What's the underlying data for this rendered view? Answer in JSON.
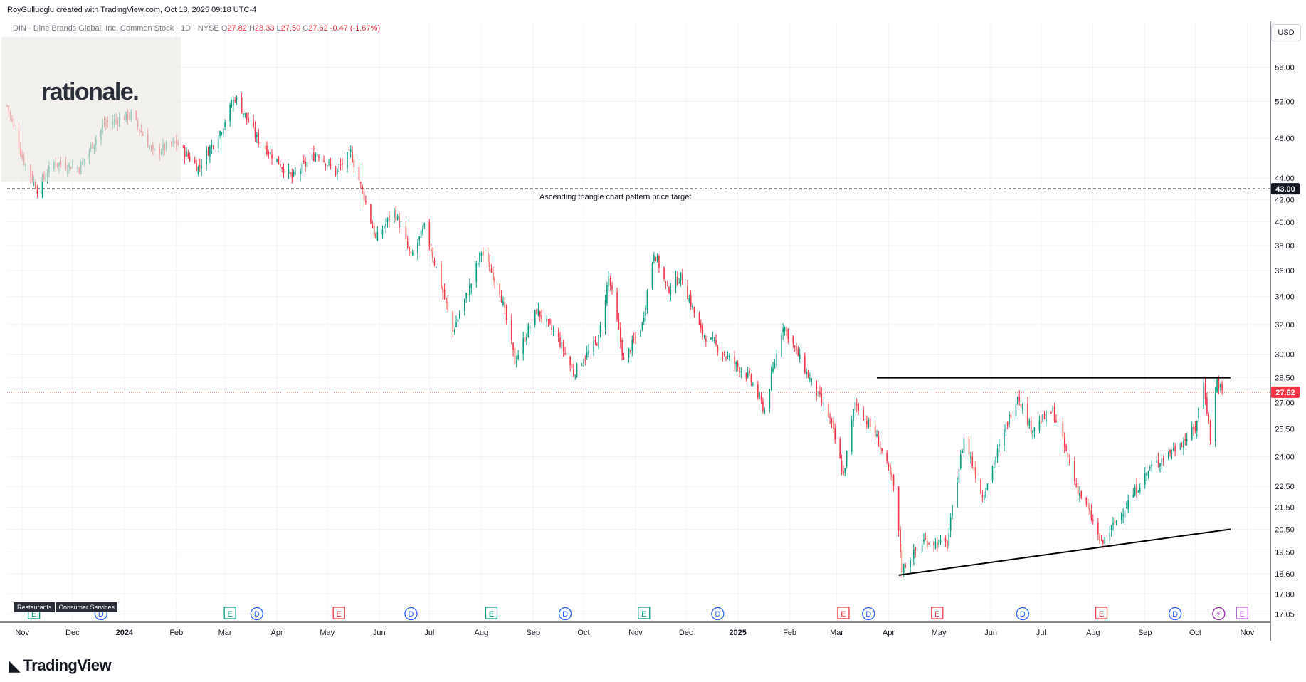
{
  "header": {
    "attribution": "RoyGulluoglu created with TradingView.com, Oct 18, 2025 09:18 UTC-4"
  },
  "ticker": {
    "name": "DIN · Dine Brands Global, Inc. Common Stock · 1D · NYSE",
    "open_label": "O",
    "open": "27.82",
    "high_label": "H",
    "high": "28.33",
    "low_label": "L",
    "low": "27.50",
    "close_label": "C",
    "close": "27.62",
    "change": "-0.47 (-1.67%)"
  },
  "watermark": {
    "text": "rationale."
  },
  "price_scale": {
    "currency": "USD"
  },
  "sector_tags": [
    "Restaurants",
    "Consumer Services"
  ],
  "footer": {
    "brand": "TradingView"
  },
  "colors": {
    "up": "#089981",
    "down": "#f23645",
    "grid": "#f0f3fa",
    "axis_text": "#131722",
    "trendline": "#000000",
    "last_price_line": "#f23645"
  },
  "chart_data": {
    "type": "candlestick",
    "symbol": "DIN",
    "interval": "1D",
    "currency": "USD",
    "price_scale": "log",
    "y_ticks": [
      17.05,
      17.8,
      18.6,
      19.5,
      20.5,
      21.5,
      22.5,
      24.0,
      25.5,
      27.0,
      28.5,
      30.0,
      32.0,
      34.0,
      36.0,
      38.0,
      40.0,
      42.0,
      44.0,
      48.0,
      52.0,
      56.0
    ],
    "y_tick_labels": [
      "17.05",
      "17.80",
      "18.60",
      "19.50",
      "20.50",
      "21.50",
      "22.50",
      "24.00",
      "25.50",
      "27.00",
      "28.50",
      "30.00",
      "32.00",
      "34.00",
      "36.00",
      "38.00",
      "40.00",
      "42.00",
      "44.00",
      "48.00",
      "52.00",
      "56.00"
    ],
    "x_ticks": [
      "Nov",
      "Dec",
      "2024",
      "Feb",
      "Mar",
      "Apr",
      "May",
      "Jun",
      "Jul",
      "Aug",
      "Sep",
      "Oct",
      "Nov",
      "Dec",
      "2025",
      "Feb",
      "Mar",
      "Apr",
      "May",
      "Jun",
      "Jul",
      "Aug",
      "Sep",
      "Oct",
      "Nov"
    ],
    "x_tick_dates": [
      "2023-11-01",
      "2023-12-01",
      "2024-01-01",
      "2024-02-01",
      "2024-03-01",
      "2024-04-01",
      "2024-05-01",
      "2024-06-01",
      "2024-07-01",
      "2024-08-01",
      "2024-09-01",
      "2024-10-01",
      "2024-11-01",
      "2024-12-01",
      "2025-01-01",
      "2025-02-01",
      "2025-03-01",
      "2025-04-01",
      "2025-05-01",
      "2025-06-01",
      "2025-07-01",
      "2025-08-01",
      "2025-09-01",
      "2025-10-01",
      "2025-11-01"
    ],
    "x_range": [
      "2023-10-23",
      "2025-11-14"
    ],
    "y_range": [
      16.9,
      60.0
    ],
    "last_price": 27.62,
    "last_price_label": "27.62",
    "target_price": 43.0,
    "target_price_label": "43.00",
    "target_annotation": "Ascending triangle chart pattern price target",
    "approx_close_path": [
      {
        "date": "2023-10-23",
        "close": 51.5
      },
      {
        "date": "2023-11-01",
        "close": 46.0
      },
      {
        "date": "2023-11-10",
        "close": 43.0
      },
      {
        "date": "2023-11-20",
        "close": 45.5
      },
      {
        "date": "2023-12-05",
        "close": 45.0
      },
      {
        "date": "2023-12-20",
        "close": 49.5
      },
      {
        "date": "2024-01-05",
        "close": 50.5
      },
      {
        "date": "2024-01-18",
        "close": 46.5
      },
      {
        "date": "2024-02-01",
        "close": 47.5
      },
      {
        "date": "2024-02-14",
        "close": 45.0
      },
      {
        "date": "2024-02-28",
        "close": 49.0
      },
      {
        "date": "2024-03-07",
        "close": 52.5
      },
      {
        "date": "2024-03-20",
        "close": 48.0
      },
      {
        "date": "2024-04-10",
        "close": 44.0
      },
      {
        "date": "2024-04-25",
        "close": 46.5
      },
      {
        "date": "2024-05-06",
        "close": 44.5
      },
      {
        "date": "2024-05-15",
        "close": 46.5
      },
      {
        "date": "2024-05-30",
        "close": 38.5
      },
      {
        "date": "2024-06-10",
        "close": 41.0
      },
      {
        "date": "2024-06-20",
        "close": 37.0
      },
      {
        "date": "2024-06-28",
        "close": 39.5
      },
      {
        "date": "2024-07-15",
        "close": 31.5
      },
      {
        "date": "2024-07-26",
        "close": 35.0
      },
      {
        "date": "2024-08-01",
        "close": 37.5
      },
      {
        "date": "2024-08-12",
        "close": 34.5
      },
      {
        "date": "2024-08-21",
        "close": 29.5
      },
      {
        "date": "2024-09-03",
        "close": 33.0
      },
      {
        "date": "2024-09-16",
        "close": 31.0
      },
      {
        "date": "2024-09-25",
        "close": 28.8
      },
      {
        "date": "2024-10-10",
        "close": 31.0
      },
      {
        "date": "2024-10-16",
        "close": 35.5
      },
      {
        "date": "2024-10-25",
        "close": 29.5
      },
      {
        "date": "2024-11-05",
        "close": 32.0
      },
      {
        "date": "2024-11-12",
        "close": 37.5
      },
      {
        "date": "2024-11-20",
        "close": 34.5
      },
      {
        "date": "2024-11-28",
        "close": 35.5
      },
      {
        "date": "2024-12-10",
        "close": 31.5
      },
      {
        "date": "2024-12-24",
        "close": 30.0
      },
      {
        "date": "2025-01-08",
        "close": 28.5
      },
      {
        "date": "2025-01-17",
        "close": 26.5
      },
      {
        "date": "2025-01-28",
        "close": 32.0
      },
      {
        "date": "2025-02-10",
        "close": 29.0
      },
      {
        "date": "2025-02-25",
        "close": 26.0
      },
      {
        "date": "2025-03-05",
        "close": 23.0
      },
      {
        "date": "2025-03-12",
        "close": 27.0
      },
      {
        "date": "2025-03-25",
        "close": 25.0
      },
      {
        "date": "2025-04-04",
        "close": 22.5
      },
      {
        "date": "2025-04-09",
        "close": 18.8
      },
      {
        "date": "2025-04-22",
        "close": 20.0
      },
      {
        "date": "2025-05-06",
        "close": 19.8
      },
      {
        "date": "2025-05-16",
        "close": 25.0
      },
      {
        "date": "2025-05-27",
        "close": 22.0
      },
      {
        "date": "2025-06-06",
        "close": 24.5
      },
      {
        "date": "2025-06-17",
        "close": 27.5
      },
      {
        "date": "2025-06-25",
        "close": 25.5
      },
      {
        "date": "2025-07-08",
        "close": 26.5
      },
      {
        "date": "2025-07-22",
        "close": 22.5
      },
      {
        "date": "2025-07-31",
        "close": 21.0
      },
      {
        "date": "2025-08-06",
        "close": 19.8
      },
      {
        "date": "2025-08-20",
        "close": 21.5
      },
      {
        "date": "2025-09-05",
        "close": 23.5
      },
      {
        "date": "2025-09-20",
        "close": 24.5
      },
      {
        "date": "2025-10-01",
        "close": 25.5
      },
      {
        "date": "2025-10-06",
        "close": 28.2
      },
      {
        "date": "2025-10-10",
        "close": 25.0
      },
      {
        "date": "2025-10-14",
        "close": 28.33
      },
      {
        "date": "2025-10-17",
        "close": 27.62
      }
    ],
    "trendlines": [
      {
        "name": "resistance",
        "points": [
          {
            "date": "2025-03-25",
            "price": 28.5
          },
          {
            "date": "2025-10-22",
            "price": 28.5
          }
        ]
      },
      {
        "name": "support",
        "points": [
          {
            "date": "2025-04-07",
            "price": 18.55
          },
          {
            "date": "2025-10-22",
            "price": 20.5
          }
        ]
      }
    ],
    "event_markers": [
      {
        "date": "2023-11-08",
        "label": "E",
        "kind": "earnings-positive"
      },
      {
        "date": "2023-12-18",
        "label": "D",
        "kind": "dividend"
      },
      {
        "date": "2024-03-04",
        "label": "E",
        "kind": "earnings-positive"
      },
      {
        "date": "2024-03-20",
        "label": "D",
        "kind": "dividend"
      },
      {
        "date": "2024-05-08",
        "label": "E",
        "kind": "earnings-negative"
      },
      {
        "date": "2024-06-20",
        "label": "D",
        "kind": "dividend"
      },
      {
        "date": "2024-08-07",
        "label": "E",
        "kind": "earnings-positive"
      },
      {
        "date": "2024-09-20",
        "label": "D",
        "kind": "dividend"
      },
      {
        "date": "2024-11-06",
        "label": "E",
        "kind": "earnings-positive"
      },
      {
        "date": "2024-12-20",
        "label": "D",
        "kind": "dividend"
      },
      {
        "date": "2025-03-05",
        "label": "E",
        "kind": "earnings-negative"
      },
      {
        "date": "2025-03-20",
        "label": "D",
        "kind": "dividend"
      },
      {
        "date": "2025-04-30",
        "label": "E",
        "kind": "earnings-negative"
      },
      {
        "date": "2025-06-20",
        "label": "D",
        "kind": "dividend"
      },
      {
        "date": "2025-08-06",
        "label": "E",
        "kind": "earnings-negative"
      },
      {
        "date": "2025-09-19",
        "label": "D",
        "kind": "dividend"
      },
      {
        "date": "2025-10-15",
        "label": "⚡",
        "kind": "split"
      },
      {
        "date": "2025-10-29",
        "label": "E",
        "kind": "earnings-upcoming"
      }
    ]
  }
}
